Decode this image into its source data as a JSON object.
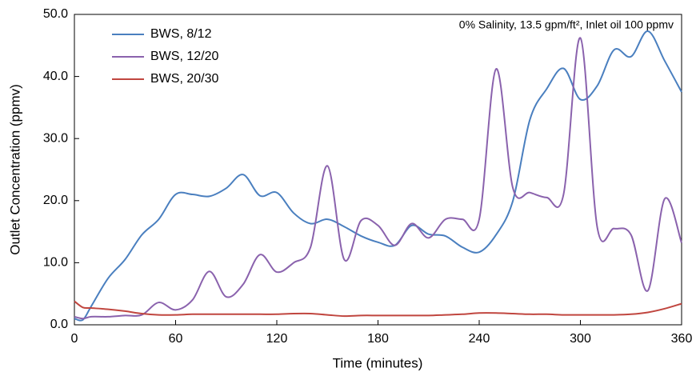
{
  "chart_data": {
    "type": "line",
    "annotation": "0% Salinity, 13.5 gpm/ft², Inlet oil 100 ppmv",
    "x_label": "Time (minutes)",
    "y_label": "Outlet Concentration (ppmv)",
    "x": [
      0,
      5,
      10,
      20,
      30,
      40,
      50,
      60,
      70,
      80,
      90,
      100,
      110,
      120,
      130,
      140,
      150,
      160,
      170,
      180,
      190,
      200,
      210,
      220,
      230,
      240,
      250,
      260,
      270,
      280,
      290,
      300,
      310,
      320,
      330,
      340,
      350,
      360
    ],
    "series": [
      {
        "name": "BWS, 8/12",
        "color": "#4a7fbf",
        "values": [
          1.0,
          0.8,
          3,
          7.5,
          10.5,
          14.5,
          17,
          21,
          21,
          20.7,
          22,
          24.2,
          20.8,
          21.3,
          18,
          16.3,
          17,
          15.8,
          14.3,
          13.3,
          12.8,
          16,
          14.6,
          14.3,
          12.5,
          11.7,
          14.5,
          20,
          33,
          38,
          41.3,
          36.3,
          38.5,
          44.3,
          43.2,
          47.3,
          42.5,
          37.5
        ]
      },
      {
        "name": "BWS, 12/20",
        "color": "#8a62ad",
        "values": [
          1.3,
          1.0,
          1.3,
          1.3,
          1.5,
          1.6,
          3.6,
          2.4,
          4,
          8.6,
          4.5,
          6.5,
          11.3,
          8.5,
          10,
          12.5,
          25.6,
          10.5,
          16.8,
          16,
          12.8,
          16.3,
          14,
          17,
          17,
          17,
          41.2,
          22,
          21.3,
          20.5,
          21,
          46.2,
          15.7,
          15.5,
          14.5,
          5.5,
          20.3,
          13.2
        ]
      },
      {
        "name": "BWS, 20/30",
        "color": "#c0463f",
        "values": [
          3.8,
          2.8,
          2.7,
          2.5,
          2.2,
          1.8,
          1.6,
          1.6,
          1.7,
          1.7,
          1.7,
          1.7,
          1.7,
          1.7,
          1.8,
          1.8,
          1.6,
          1.4,
          1.5,
          1.5,
          1.5,
          1.5,
          1.5,
          1.6,
          1.7,
          1.9,
          1.9,
          1.8,
          1.7,
          1.7,
          1.6,
          1.6,
          1.6,
          1.6,
          1.7,
          2.0,
          2.6,
          3.4
        ]
      }
    ],
    "xlim": [
      0,
      360
    ],
    "xticks": [
      0,
      60,
      120,
      180,
      240,
      300,
      360
    ],
    "ylim": [
      0,
      50
    ],
    "yticks": [
      {
        "value": 0,
        "label": "0.0"
      },
      {
        "value": 10,
        "label": "10.0"
      },
      {
        "value": 20,
        "label": "20.0"
      },
      {
        "value": 30,
        "label": "30.0"
      },
      {
        "value": 40,
        "label": "40.0"
      },
      {
        "value": 50,
        "label": "50.0"
      }
    ],
    "grid": false,
    "legend": "upper left"
  }
}
